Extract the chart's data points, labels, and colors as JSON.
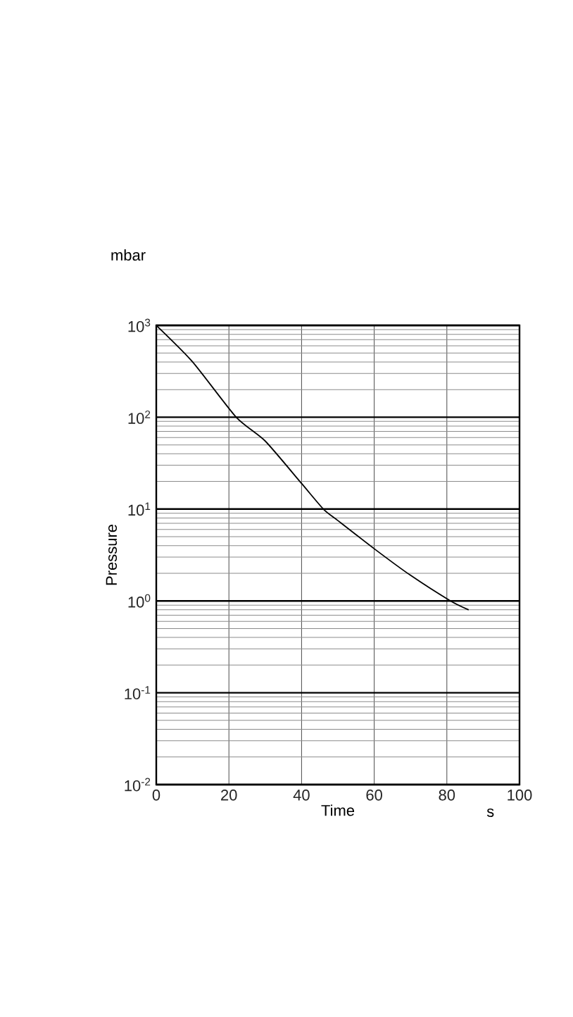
{
  "chart_data": {
    "type": "line",
    "xlabel": "Time",
    "ylabel": "Pressure",
    "annotations": [
      "mbar",
      "s"
    ],
    "x": [
      0,
      10,
      22,
      30,
      40,
      46,
      50,
      60,
      70,
      81,
      86
    ],
    "series": [
      {
        "color": "#000000",
        "values": [
          1000,
          400,
          100,
          55,
          19,
          10,
          7.5,
          3.7,
          1.9,
          1,
          0.8
        ]
      }
    ],
    "log": "y",
    "grid": true,
    "marker": "none",
    "line_style": "solid",
    "xlim": [
      0,
      100
    ],
    "xticks": [
      0,
      20,
      40,
      60,
      80,
      100
    ],
    "ylim": [
      0.01,
      1000
    ],
    "yticks": [
      {
        "value": 0.01,
        "label": "10$^{-2}$"
      },
      {
        "value": 0.1,
        "label": "10$^{-1}$"
      },
      {
        "value": 1,
        "label": "10$^{0}$"
      },
      {
        "value": 10,
        "label": "10$^{1}$"
      },
      {
        "value": 100,
        "label": "10$^{2}$"
      },
      {
        "value": 1000,
        "label": "10$^{3}$"
      }
    ]
  }
}
